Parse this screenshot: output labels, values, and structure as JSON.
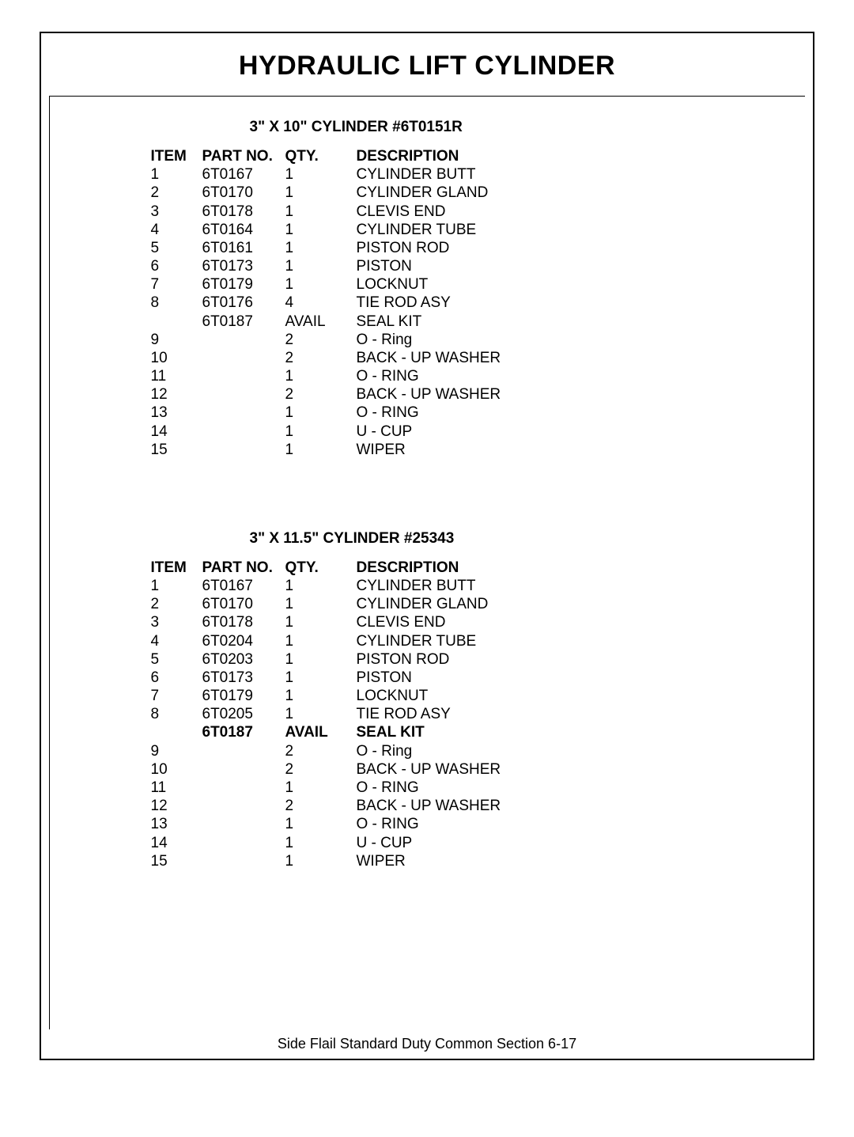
{
  "page_title": "HYDRAULIC LIFT CYLINDER",
  "footer_bold": "Side Flail Standard Duty ",
  "footer_light": "Common Section 6-17",
  "colors": {
    "text": "#000000",
    "background": "#ffffff",
    "border": "#000000"
  },
  "typography": {
    "title_fontsize_pt": 26,
    "body_fontsize_pt": 14,
    "font_family": "Arial"
  },
  "columns": [
    "ITEM",
    "PART No.",
    "QTY.",
    "DESCRIPTION"
  ],
  "sections": [
    {
      "heading": "3\" X 10\" CYLINDER   #6T0151R",
      "rows": [
        {
          "item": "1",
          "part": "6T0167",
          "qty": "1",
          "desc": "CYLINDER BUTT",
          "bold": false
        },
        {
          "item": "2",
          "part": "6T0170",
          "qty": "1",
          "desc": "CYLINDER GLAND",
          "bold": false
        },
        {
          "item": "3",
          "part": "6T0178",
          "qty": "1",
          "desc": "CLEVIS END",
          "bold": false
        },
        {
          "item": "4",
          "part": "6T0164",
          "qty": "1",
          "desc": "CYLINDER TUBE",
          "bold": false
        },
        {
          "item": "5",
          "part": "6T0161",
          "qty": "1",
          "desc": "PISTON ROD",
          "bold": false
        },
        {
          "item": "6",
          "part": "6T0173",
          "qty": "1",
          "desc": "PISTON",
          "bold": false
        },
        {
          "item": "7",
          "part": "6T0179",
          "qty": "1",
          "desc": "LOCKNUT",
          "bold": false
        },
        {
          "item": "8",
          "part": "6T0176",
          "qty": "4",
          "desc": "TIE ROD ASY",
          "bold": false
        },
        {
          "item": "",
          "part": "6T0187",
          "qty": "AVAIL",
          "desc": "SEAL KIT",
          "bold": false
        },
        {
          "item": "9",
          "part": "",
          "qty": "2",
          "desc": "O - Ring",
          "bold": false
        },
        {
          "item": "10",
          "part": "",
          "qty": "2",
          "desc": "BACK - UP WASHER",
          "bold": false
        },
        {
          "item": "11",
          "part": "",
          "qty": "1",
          "desc": "O - RING",
          "bold": false
        },
        {
          "item": "12",
          "part": "",
          "qty": "2",
          "desc": "BACK - UP WASHER",
          "bold": false
        },
        {
          "item": "13",
          "part": "",
          "qty": "1",
          "desc": "O - RING",
          "bold": false
        },
        {
          "item": "14",
          "part": "",
          "qty": "1",
          "desc": "U - CUP",
          "bold": false
        },
        {
          "item": "15",
          "part": "",
          "qty": "1",
          "desc": "WIPER",
          "bold": false
        }
      ]
    },
    {
      "heading": "3\" X 11.5\" CYLINDER   #25343",
      "rows": [
        {
          "item": "1",
          "part": "6T0167",
          "qty": "1",
          "desc": "CYLINDER BUTT",
          "bold": false
        },
        {
          "item": "2",
          "part": "6T0170",
          "qty": "1",
          "desc": "CYLINDER GLAND",
          "bold": false
        },
        {
          "item": "3",
          "part": "6T0178",
          "qty": "1",
          "desc": "CLEVIS END",
          "bold": false
        },
        {
          "item": "4",
          "part": "6T0204",
          "qty": "1",
          "desc": "CYLINDER TUBE",
          "bold": false
        },
        {
          "item": "5",
          "part": "6T0203",
          "qty": "1",
          "desc": "PISTON ROD",
          "bold": false
        },
        {
          "item": "6",
          "part": "6T0173",
          "qty": "1",
          "desc": "PISTON",
          "bold": false
        },
        {
          "item": "7",
          "part": "6T0179",
          "qty": "1",
          "desc": "LOCKNUT",
          "bold": false
        },
        {
          "item": "8",
          "part": "6T0205",
          "qty": "1",
          "desc": "TIE ROD ASY",
          "bold": false
        },
        {
          "item": "",
          "part": "6T0187",
          "qty": "AVAIL",
          "desc": "SEAL KIT",
          "bold": true
        },
        {
          "item": "9",
          "part": "",
          "qty": "2",
          "desc": "O - Ring",
          "bold": false
        },
        {
          "item": "10",
          "part": "",
          "qty": "2",
          "desc": "BACK - UP WASHER",
          "bold": false
        },
        {
          "item": "11",
          "part": "",
          "qty": "1",
          "desc": "O - RING",
          "bold": false
        },
        {
          "item": "12",
          "part": "",
          "qty": "2",
          "desc": "BACK - UP WASHER",
          "bold": false
        },
        {
          "item": "13",
          "part": "",
          "qty": "1",
          "desc": "O - RING",
          "bold": false
        },
        {
          "item": "14",
          "part": "",
          "qty": "1",
          "desc": "U - CUP",
          "bold": false
        },
        {
          "item": "15",
          "part": "",
          "qty": "1",
          "desc": "WIPER",
          "bold": false
        }
      ]
    }
  ]
}
